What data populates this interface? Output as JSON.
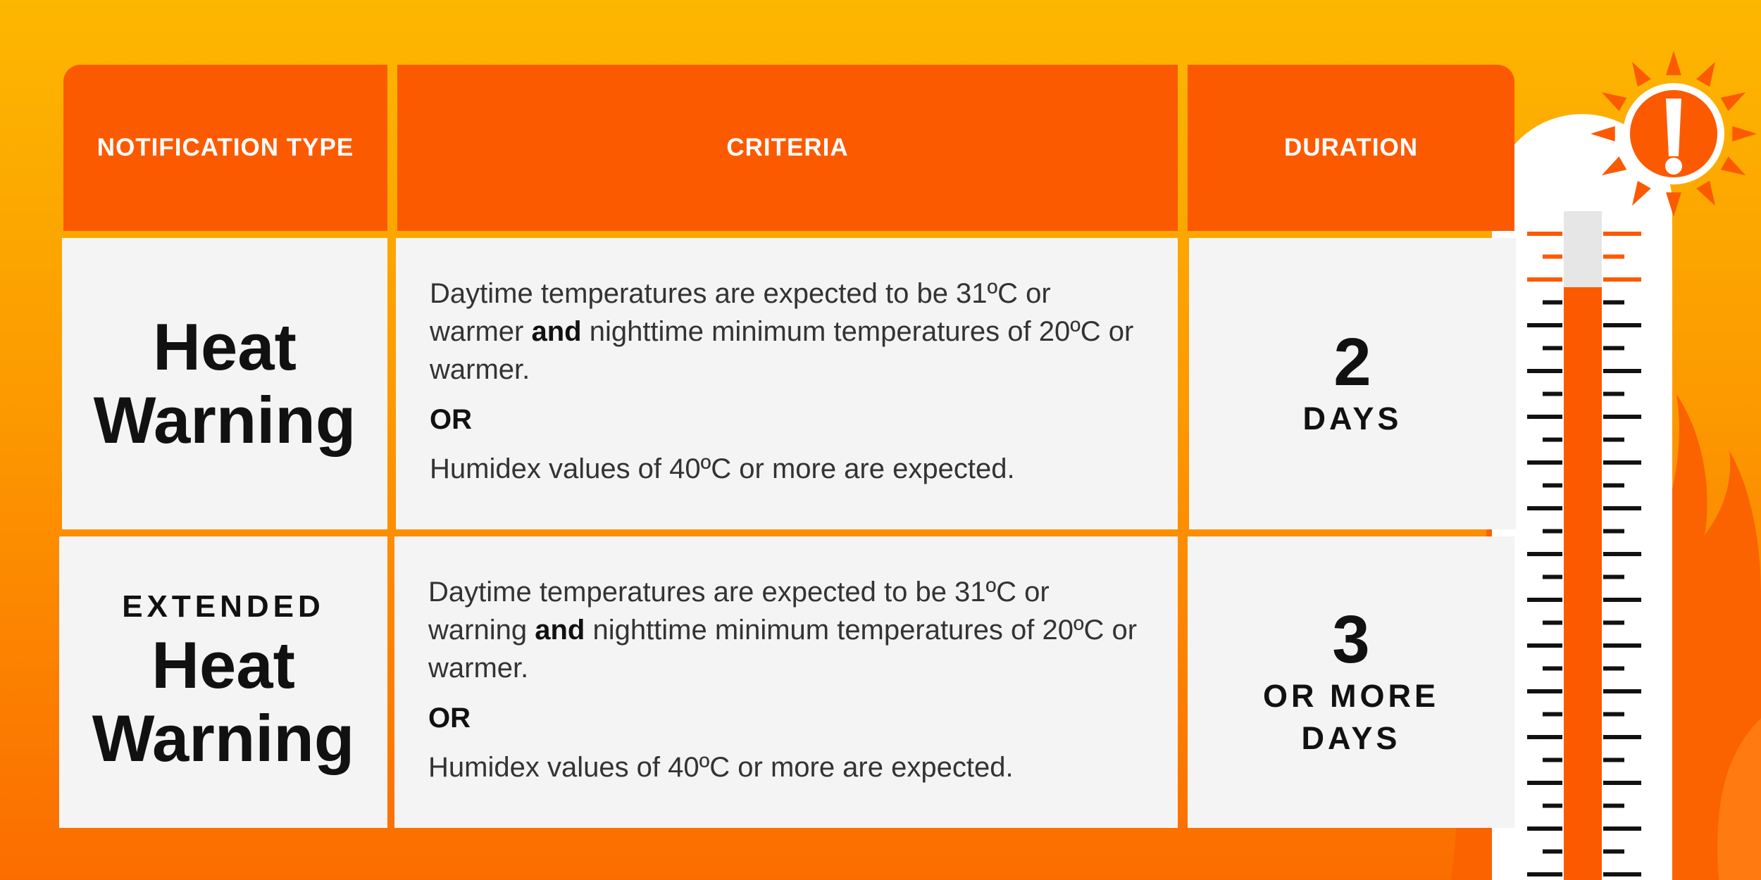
{
  "headers": {
    "type": "NOTIFICATION TYPE",
    "criteria": "CRITERIA",
    "duration": "DURATION"
  },
  "rows": [
    {
      "type_prefix": "",
      "type_line1": "Heat",
      "type_line2": "Warning",
      "criteria_a1": "Daytime temperatures are expected to be 31ºC or warmer ",
      "criteria_and": "and",
      "criteria_a2": " nighttime minimum temperatures of 20ºC or warmer.",
      "criteria_or": "OR",
      "criteria_b": "Humidex values of 40ºC or more are expected.",
      "duration_num": "2",
      "duration_unit1": "DAYS",
      "duration_unit2": ""
    },
    {
      "type_prefix": "EXTENDED",
      "type_line1": "Heat",
      "type_line2": "Warning",
      "criteria_a1": "Daytime temperatures are expected to be 31ºC or warning ",
      "criteria_and": "and",
      "criteria_a2": " nighttime minimum temperatures of 20ºC or warmer.",
      "criteria_or": "OR",
      "criteria_b": "Humidex values of 40ºC or more are expected.",
      "duration_num": "3",
      "duration_unit1": "OR MORE",
      "duration_unit2": "DAYS"
    }
  ],
  "colors": {
    "header_bg": "#fc5a00",
    "cell_bg": "#f4f4f4",
    "accent_orange": "#fc5a00",
    "bg_top": "#fdb700",
    "bg_bottom": "#fb6d00"
  },
  "icons": {
    "thermometer": "thermometer-icon",
    "alert_sun": "sun-alert-icon",
    "flames": "flame-icon"
  }
}
